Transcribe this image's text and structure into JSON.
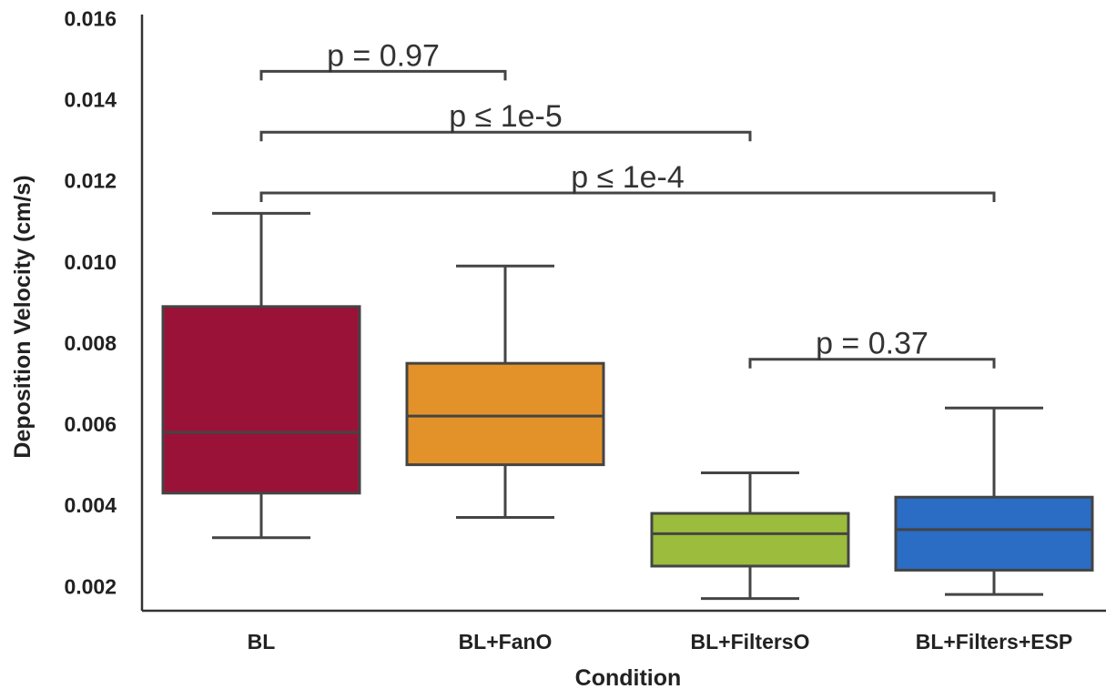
{
  "chart_data": {
    "type": "box",
    "xlabel": "Condition",
    "ylabel": "Deposition Velocity (cm/s)",
    "ylim": [
      0.0014,
      0.0161
    ],
    "yticks": [
      "0.002",
      "0.004",
      "0.006",
      "0.008",
      "0.010",
      "0.012",
      "0.014",
      "0.016"
    ],
    "grid": false,
    "categories": [
      "BL",
      "BL+FanO",
      "BL+FiltersO",
      "BL+Filters+ESP"
    ],
    "boxes": [
      {
        "category": "BL",
        "color": "#9b1239",
        "whisker_low": 0.0032,
        "q1": 0.0043,
        "median": 0.0058,
        "q3": 0.0089,
        "whisker_high": 0.0112
      },
      {
        "category": "BL+FanO",
        "color": "#e3922a",
        "whisker_low": 0.0037,
        "q1": 0.005,
        "median": 0.0062,
        "q3": 0.0075,
        "whisker_high": 0.0099
      },
      {
        "category": "BL+FiltersO",
        "color": "#9bbc3c",
        "whisker_low": 0.0017,
        "q1": 0.0025,
        "median": 0.0033,
        "q3": 0.0038,
        "whisker_high": 0.0048
      },
      {
        "category": "BL+Filters+ESP",
        "color": "#2b6cc4",
        "whisker_low": 0.0018,
        "q1": 0.0024,
        "median": 0.0034,
        "q3": 0.0042,
        "whisker_high": 0.0064
      }
    ],
    "annotations": [
      {
        "from": "BL",
        "to": "BL+FanO",
        "text": "p = 0.97",
        "level": 0.0147
      },
      {
        "from": "BL",
        "to": "BL+FiltersO",
        "text": "p ≤ 1e-5",
        "level": 0.0132
      },
      {
        "from": "BL",
        "to": "BL+Filters+ESP",
        "text": "p ≤ 1e-4",
        "level": 0.0117
      },
      {
        "from": "BL+FiltersO",
        "to": "BL+Filters+ESP",
        "text": "p = 0.37",
        "level": 0.0076
      }
    ]
  }
}
